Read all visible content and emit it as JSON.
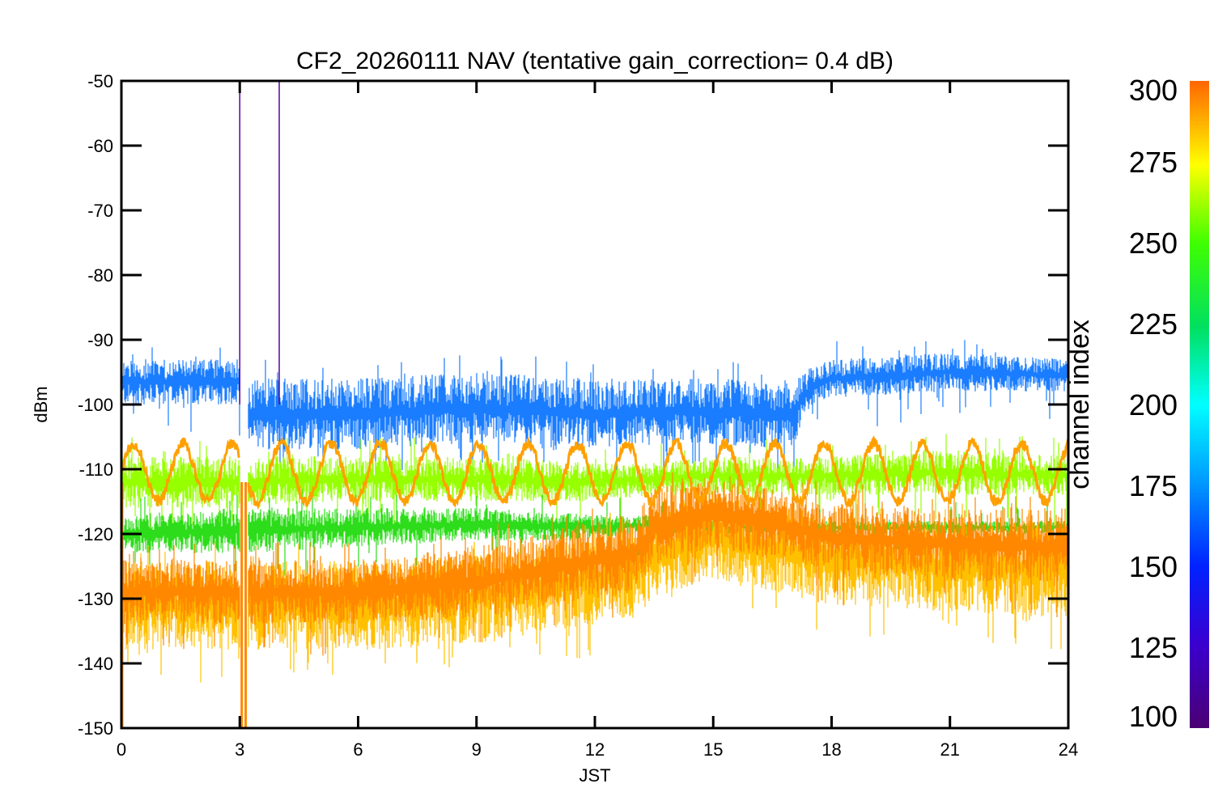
{
  "chart_data": {
    "type": "line",
    "title": "CF2_20260111 NAV (tentative gain_correction=  0.4 dB)",
    "xlabel": "JST",
    "ylabel": "dBm",
    "xlim": [
      0,
      24
    ],
    "ylim": [
      -150,
      -50
    ],
    "xticks": [
      0,
      3,
      6,
      9,
      12,
      15,
      18,
      21,
      24
    ],
    "yticks": [
      -50,
      -60,
      -70,
      -80,
      -90,
      -100,
      -110,
      -120,
      -130,
      -140,
      -150
    ],
    "colorbar": {
      "label": "channel index",
      "range": [
        100,
        300
      ],
      "ticks": [
        300,
        275,
        250,
        225,
        200,
        175,
        150,
        125,
        100
      ]
    },
    "gaps": [
      [
        3.0,
        3.2
      ]
    ],
    "spikes": [
      {
        "x": 3.0,
        "y_top": -50,
        "channel": 110
      },
      {
        "x": 4.0,
        "y_top": -50,
        "channel": 110
      },
      {
        "x": 3.05,
        "y_top": -150,
        "channel": 290
      },
      {
        "x": 3.15,
        "y_top": -150,
        "channel": 290
      },
      {
        "x": 0.02,
        "y_top": -150,
        "channel": 290
      }
    ],
    "series": [
      {
        "channel": 150,
        "color": "#1a7dff",
        "x": [
          0,
          3,
          3.2,
          6,
          9,
          12,
          14,
          17,
          17.5,
          18,
          21,
          24
        ],
        "low": [
          -100,
          -100,
          -107,
          -107,
          -106,
          -107,
          -106,
          -107,
          -100,
          -99,
          -98,
          -98
        ],
        "high": [
          -93,
          -93,
          -96,
          -96,
          -95,
          -96,
          -96,
          -96,
          -94,
          -93,
          -92,
          -93
        ]
      },
      {
        "channel": 255,
        "color": "#96ff00",
        "x": [
          0,
          3,
          6,
          9,
          12,
          13.5,
          15,
          18,
          21,
          24
        ],
        "low": [
          -116,
          -116,
          -115,
          -115,
          -115,
          -114,
          -114,
          -114,
          -114,
          -114
        ],
        "high": [
          -108,
          -108,
          -108,
          -108,
          -109,
          -109,
          -108,
          -108,
          -107,
          -108
        ]
      },
      {
        "channel": 240,
        "color": "#2ddc1a",
        "x": [
          0,
          3,
          6,
          9,
          12,
          13.5,
          15,
          18,
          21,
          24
        ],
        "low": [
          -123,
          -123,
          -122,
          -121,
          -121,
          -120,
          -120,
          -120,
          -120,
          -120
        ],
        "high": [
          -117,
          -116,
          -116,
          -116,
          -117,
          -117,
          -118,
          -118,
          -118,
          -118
        ]
      },
      {
        "channel": 280,
        "color": "#ffc000",
        "x": [
          0,
          3,
          6,
          9,
          12,
          13,
          13.5,
          15,
          18,
          21,
          24
        ],
        "low": [
          -138,
          -138,
          -138,
          -137,
          -134,
          -133,
          -130,
          -127,
          -131,
          -132,
          -133
        ],
        "high": [
          -124,
          -124,
          -124,
          -123,
          -120,
          -119,
          -116,
          -114,
          -117,
          -118,
          -118
        ]
      },
      {
        "channel": 290,
        "color": "#ff8800",
        "x": [
          0,
          3,
          6,
          9,
          12,
          13,
          13.5,
          15,
          18,
          21,
          24
        ],
        "low": [
          -134,
          -134,
          -134,
          -133,
          -130,
          -129,
          -125,
          -122,
          -126,
          -127,
          -128
        ],
        "high": [
          -124,
          -124,
          -124,
          -122,
          -118,
          -117,
          -113,
          -111,
          -115,
          -116,
          -116
        ]
      },
      {
        "channel": 285,
        "color": "#ffa000",
        "kind": "sine",
        "x_range": [
          0,
          24
        ],
        "center": -110.5,
        "amplitude": 4.5,
        "period_h": 1.25
      }
    ]
  }
}
